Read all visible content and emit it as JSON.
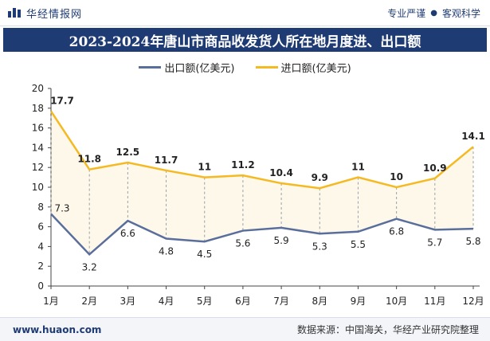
{
  "header": {
    "brand": "华经情报网",
    "tag1": "专业严谨",
    "tag2": "客观科学"
  },
  "title": "2023-2024年唐山市商品收发货人所在地月度进、出口额",
  "footer": {
    "website": "www.huaon.com",
    "source": "数据来源：中国海关，华经产业研究院整理"
  },
  "colors": {
    "brand": "#1f3b73",
    "export": "#5a6e9c",
    "import": "#f5b921"
  },
  "chart_data": {
    "type": "line",
    "categories": [
      "1月",
      "2月",
      "3月",
      "4月",
      "5月",
      "6月",
      "7月",
      "8月",
      "9月",
      "10月",
      "11月",
      "12月"
    ],
    "series": [
      {
        "name": "出口额(亿美元)",
        "values": [
          7.3,
          3.2,
          6.6,
          4.8,
          4.5,
          5.6,
          5.9,
          5.3,
          5.5,
          6.8,
          5.7,
          5.8
        ]
      },
      {
        "name": "进口额(亿美元)",
        "values": [
          17.7,
          11.8,
          12.5,
          11.7,
          11,
          11.2,
          10.4,
          9.9,
          11,
          10,
          10.9,
          14.1
        ]
      }
    ],
    "ylim": [
      0,
      20
    ],
    "yticks": [
      0,
      2,
      4,
      6,
      8,
      10,
      12,
      14,
      16,
      18,
      20
    ],
    "grid": false,
    "legend_position": "top-center"
  }
}
